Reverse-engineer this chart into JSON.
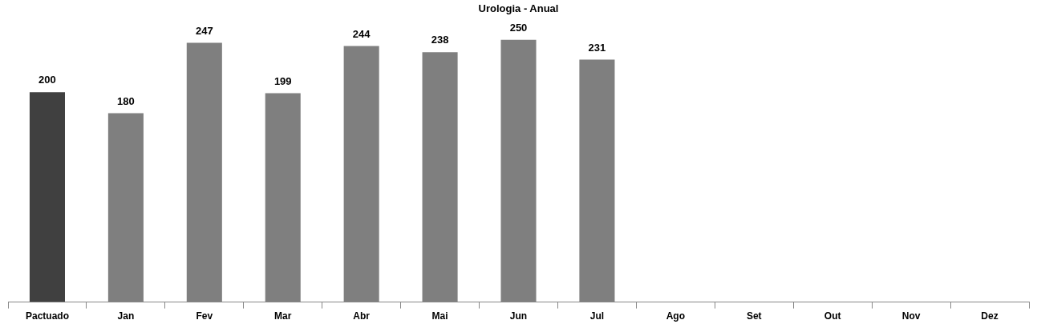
{
  "chart_data": {
    "type": "bar",
    "title": "Urologia - Anual",
    "categories": [
      "Pactuado",
      "Jan",
      "Fev",
      "Mar",
      "Abr",
      "Mai",
      "Jun",
      "Jul",
      "Ago",
      "Set",
      "Out",
      "Nov",
      "Dez"
    ],
    "values": [
      200,
      180,
      247,
      199,
      244,
      238,
      250,
      231,
      null,
      null,
      null,
      null,
      null
    ],
    "colors": [
      "#404040",
      "#7f7f7f",
      "#7f7f7f",
      "#7f7f7f",
      "#7f7f7f",
      "#7f7f7f",
      "#7f7f7f",
      "#7f7f7f",
      "#7f7f7f",
      "#7f7f7f",
      "#7f7f7f",
      "#7f7f7f",
      "#7f7f7f"
    ],
    "data_labels": true,
    "grid": false,
    "legend": false
  }
}
